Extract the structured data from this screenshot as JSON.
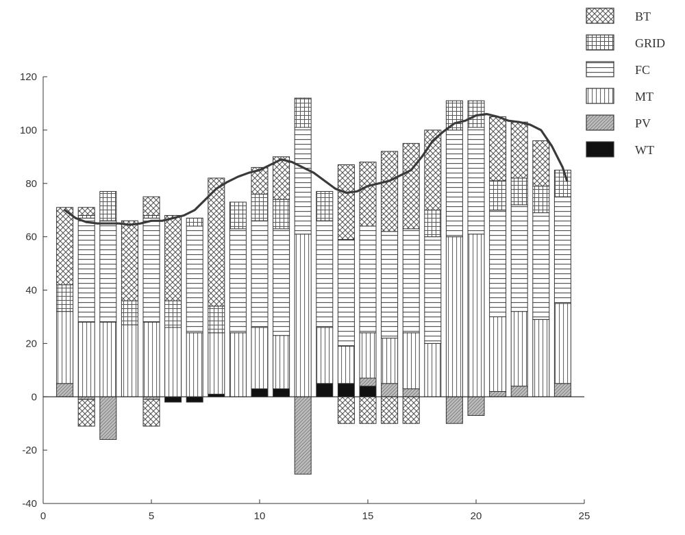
{
  "chart_data": {
    "type": "bar",
    "stacked": true,
    "x": [
      1,
      2,
      3,
      4,
      5,
      6,
      7,
      8,
      9,
      10,
      11,
      12,
      13,
      14,
      15,
      16,
      17,
      18,
      19,
      20,
      21,
      22,
      23,
      24
    ],
    "xlim": [
      0,
      25
    ],
    "ylim": [
      -40,
      120
    ],
    "xticks": [
      "0",
      "5",
      "10",
      "15",
      "20",
      "25"
    ],
    "yticks": [
      "-40",
      "-20",
      "0",
      "20",
      "40",
      "60",
      "80",
      "100",
      "120"
    ],
    "grid": false,
    "legend_position": "top-right",
    "series": [
      {
        "name": "WT",
        "pattern": "solid-black",
        "values": [
          0,
          0,
          0,
          0,
          0,
          -2,
          -2,
          1,
          0,
          3,
          3,
          0,
          5,
          5,
          4,
          0,
          0,
          0,
          0,
          0,
          0,
          0,
          0,
          0
        ]
      },
      {
        "name": "PV",
        "pattern": "diagonal",
        "values": [
          5,
          -1,
          -16,
          0,
          -1,
          0,
          0,
          0,
          0,
          0,
          0,
          -29,
          0,
          0,
          3,
          5,
          3,
          0,
          -10,
          -7,
          2,
          4,
          0,
          5
        ]
      },
      {
        "name": "MT",
        "pattern": "vertical",
        "values": [
          27,
          28,
          28,
          27,
          28,
          26,
          24,
          23,
          24,
          23,
          20,
          61,
          21,
          14,
          17,
          17,
          21,
          20,
          60,
          61,
          28,
          28,
          29,
          30
        ]
      },
      {
        "name": "FC",
        "pattern": "horizontal",
        "values": [
          0,
          39,
          38,
          0,
          39,
          0,
          40,
          0,
          39,
          40,
          40,
          40,
          40,
          40,
          40,
          40,
          39,
          40,
          40,
          40,
          40,
          40,
          40,
          40
        ]
      },
      {
        "name": "GRID",
        "pattern": "grid",
        "values": [
          10,
          1,
          11,
          9,
          1,
          10,
          3,
          10,
          10,
          10,
          11,
          11,
          11,
          0,
          0,
          0,
          0,
          10,
          11,
          10,
          11,
          10,
          10,
          10
        ]
      },
      {
        "name": "BT",
        "pattern": "crosshatch",
        "values": [
          29,
          3,
          0,
          30,
          7,
          32,
          0,
          48,
          0,
          10,
          16,
          0,
          0,
          28,
          24,
          30,
          32,
          30,
          0,
          0,
          24,
          21,
          17,
          0
        ]
      },
      {
        "name": "BT",
        "pattern": "crosshatch",
        "values": [
          0,
          -10,
          0,
          0,
          -10,
          0,
          0,
          0,
          0,
          0,
          0,
          0,
          0,
          -10,
          -10,
          -10,
          -10,
          0,
          0,
          0,
          0,
          0,
          0,
          0
        ]
      }
    ],
    "load_line": {
      "x": [
        1,
        1.5,
        2,
        2.5,
        3,
        3.5,
        4,
        4.5,
        5,
        5.5,
        6,
        6.5,
        7,
        7.5,
        8,
        8.5,
        9,
        9.5,
        10,
        10.5,
        11,
        11.5,
        12,
        12.5,
        13,
        13.5,
        14,
        14.5,
        15,
        15.5,
        16,
        16.5,
        17,
        17.5,
        18,
        18.5,
        19,
        19.5,
        20,
        20.5,
        21,
        21.5,
        22,
        22.5,
        23,
        23.5,
        24,
        24.2
      ],
      "y": [
        70,
        67,
        65.5,
        65,
        65,
        65,
        64.5,
        65,
        66,
        66,
        67,
        68,
        70,
        74,
        78,
        80.5,
        82.5,
        84,
        85,
        87,
        89,
        88,
        86,
        84,
        81,
        78,
        76.5,
        77,
        79,
        80,
        81,
        83,
        85,
        90,
        96,
        99.5,
        102.5,
        103.5,
        105.5,
        106,
        105,
        103.5,
        103,
        102,
        100,
        94,
        86,
        81
      ]
    }
  },
  "legend": [
    {
      "label": "BT",
      "pattern": "crosshatch"
    },
    {
      "label": "GRID",
      "pattern": "grid"
    },
    {
      "label": "FC",
      "pattern": "horizontal"
    },
    {
      "label": "MT",
      "pattern": "vertical"
    },
    {
      "label": "PV",
      "pattern": "diagonal"
    },
    {
      "label": "WT",
      "pattern": "solid-black"
    }
  ],
  "colors": {
    "axis": "#333333",
    "bar_outline": "#333333",
    "hatch": "#555555",
    "pv_fill": "#bdbdbd",
    "wt_fill": "#111111",
    "line": "#3a3a3a"
  }
}
